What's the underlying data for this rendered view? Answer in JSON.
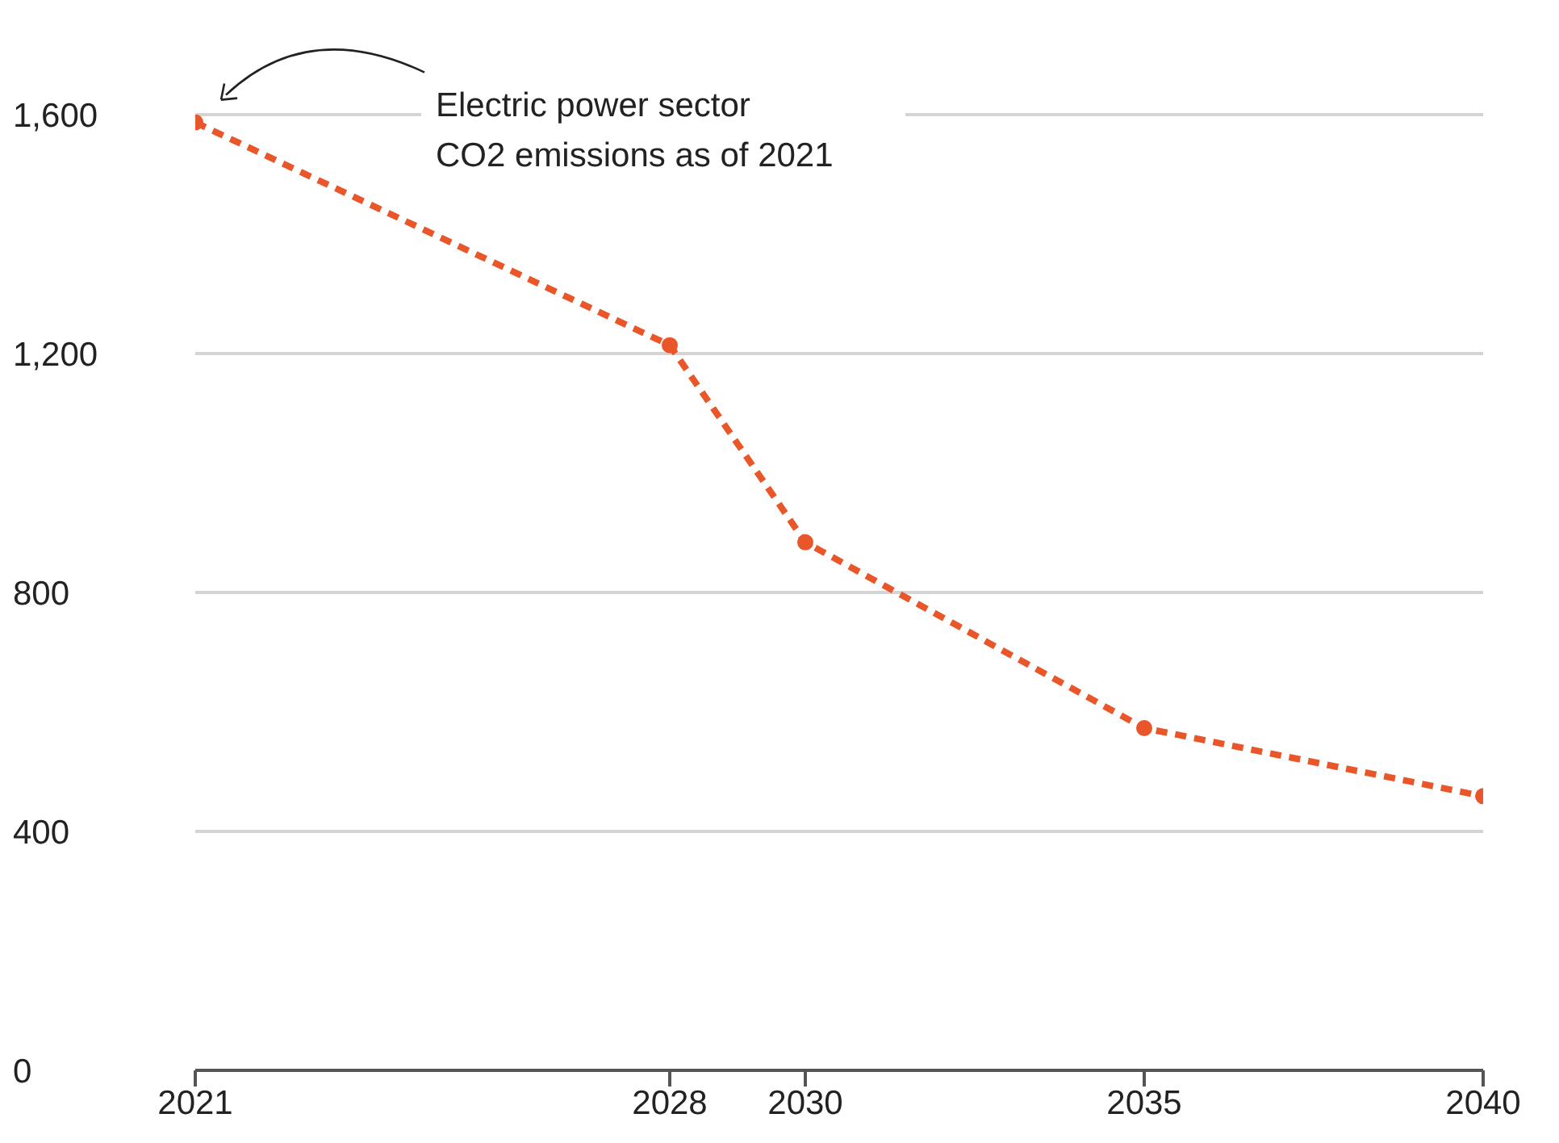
{
  "chart_data": {
    "type": "line",
    "x": [
      2021,
      2028,
      2030,
      2035,
      2040
    ],
    "series": [
      {
        "color": "#e8562a",
        "values": [
          1587,
          1214,
          884,
          573,
          459
        ]
      }
    ],
    "xlim": [
      2021,
      2040
    ],
    "xticks": [
      2021,
      2028,
      2030,
      2035,
      2040
    ],
    "ylim": [
      0,
      1600
    ],
    "yticks": [
      {
        "value": 0,
        "label": "0"
      },
      {
        "value": 400,
        "label": "400"
      },
      {
        "value": 800,
        "label": "800"
      },
      {
        "value": 1200,
        "label": "1,200"
      },
      {
        "value": 1600,
        "label": "1,600"
      }
    ],
    "grid": "y",
    "marker": "circle",
    "line_style": "dashed",
    "annotations": [
      "Electric power sector\nCO2 emissions as of 2021"
    ]
  }
}
